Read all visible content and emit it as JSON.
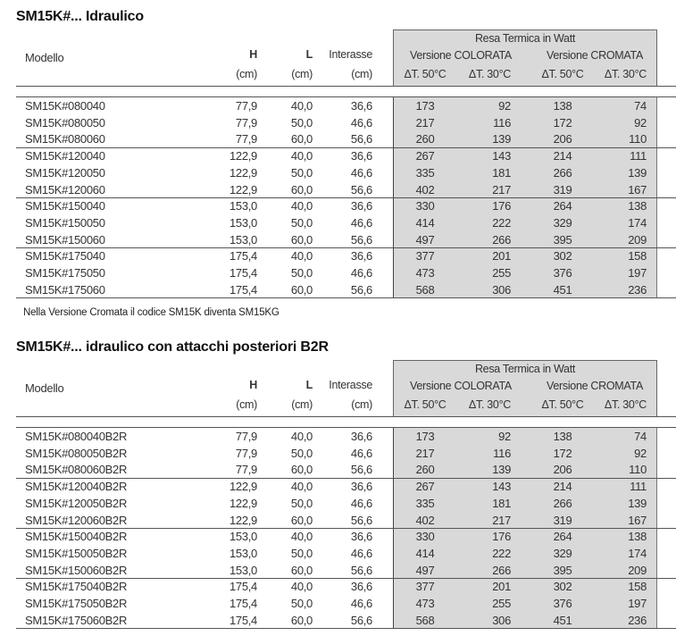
{
  "tables": [
    {
      "title": "SM15K#... Idraulico",
      "header": {
        "modello": "Modello",
        "h": "H",
        "l": "L",
        "interasse": "Interasse",
        "unit": "(cm)",
        "resa": "Resa Termica in Watt",
        "colorata": "Versione COLORATA",
        "cromata": "Versione CROMATA",
        "dt50": "ΔT. 50°C",
        "dt30": "ΔT. 30°C"
      },
      "rows": [
        [
          "SM15K#080040",
          "77,9",
          "40,0",
          "36,6",
          "173",
          "92",
          "138",
          "74"
        ],
        [
          "SM15K#080050",
          "77,9",
          "50,0",
          "46,6",
          "217",
          "116",
          "172",
          "92"
        ],
        [
          "SM15K#080060",
          "77,9",
          "60,0",
          "56,6",
          "260",
          "139",
          "206",
          "110"
        ],
        [
          "SM15K#120040",
          "122,9",
          "40,0",
          "36,6",
          "267",
          "143",
          "214",
          "111"
        ],
        [
          "SM15K#120050",
          "122,9",
          "50,0",
          "46,6",
          "335",
          "181",
          "266",
          "139"
        ],
        [
          "SM15K#120060",
          "122,9",
          "60,0",
          "56,6",
          "402",
          "217",
          "319",
          "167"
        ],
        [
          "SM15K#150040",
          "153,0",
          "40,0",
          "36,6",
          "330",
          "176",
          "264",
          "138"
        ],
        [
          "SM15K#150050",
          "153,0",
          "50,0",
          "46,6",
          "414",
          "222",
          "329",
          "174"
        ],
        [
          "SM15K#150060",
          "153,0",
          "60,0",
          "56,6",
          "497",
          "266",
          "395",
          "209"
        ],
        [
          "SM15K#175040",
          "175,4",
          "40,0",
          "36,6",
          "377",
          "201",
          "302",
          "158"
        ],
        [
          "SM15K#175050",
          "175,4",
          "50,0",
          "46,6",
          "473",
          "255",
          "376",
          "197"
        ],
        [
          "SM15K#175060",
          "175,4",
          "60,0",
          "56,6",
          "568",
          "306",
          "451",
          "236"
        ]
      ],
      "note": "Nella Versione Cromata il codice SM15K diventa SM15KG"
    },
    {
      "title": "SM15K#... idraulico con attacchi posteriori B2R",
      "header": {
        "modello": "Modello",
        "h": "H",
        "l": "L",
        "interasse": "Interasse",
        "unit": "(cm)",
        "resa": "Resa Termica in Watt",
        "colorata": "Versione COLORATA",
        "cromata": "Versione CROMATA",
        "dt50": "ΔT. 50°C",
        "dt30": "ΔT. 30°C"
      },
      "rows": [
        [
          "SM15K#080040B2R",
          "77,9",
          "40,0",
          "36,6",
          "173",
          "92",
          "138",
          "74"
        ],
        [
          "SM15K#080050B2R",
          "77,9",
          "50,0",
          "46,6",
          "217",
          "116",
          "172",
          "92"
        ],
        [
          "SM15K#080060B2R",
          "77,9",
          "60,0",
          "56,6",
          "260",
          "139",
          "206",
          "110"
        ],
        [
          "SM15K#120040B2R",
          "122,9",
          "40,0",
          "36,6",
          "267",
          "143",
          "214",
          "111"
        ],
        [
          "SM15K#120050B2R",
          "122,9",
          "50,0",
          "46,6",
          "335",
          "181",
          "266",
          "139"
        ],
        [
          "SM15K#120060B2R",
          "122,9",
          "60,0",
          "56,6",
          "402",
          "217",
          "319",
          "167"
        ],
        [
          "SM15K#150040B2R",
          "153,0",
          "40,0",
          "36,6",
          "330",
          "176",
          "264",
          "138"
        ],
        [
          "SM15K#150050B2R",
          "153,0",
          "50,0",
          "46,6",
          "414",
          "222",
          "329",
          "174"
        ],
        [
          "SM15K#150060B2R",
          "153,0",
          "60,0",
          "56,6",
          "497",
          "266",
          "395",
          "209"
        ],
        [
          "SM15K#175040B2R",
          "175,4",
          "40,0",
          "36,6",
          "377",
          "201",
          "302",
          "158"
        ],
        [
          "SM15K#175050B2R",
          "175,4",
          "50,0",
          "46,6",
          "473",
          "255",
          "376",
          "197"
        ],
        [
          "SM15K#175060B2R",
          "175,4",
          "60,0",
          "56,6",
          "568",
          "306",
          "451",
          "236"
        ]
      ]
    }
  ]
}
